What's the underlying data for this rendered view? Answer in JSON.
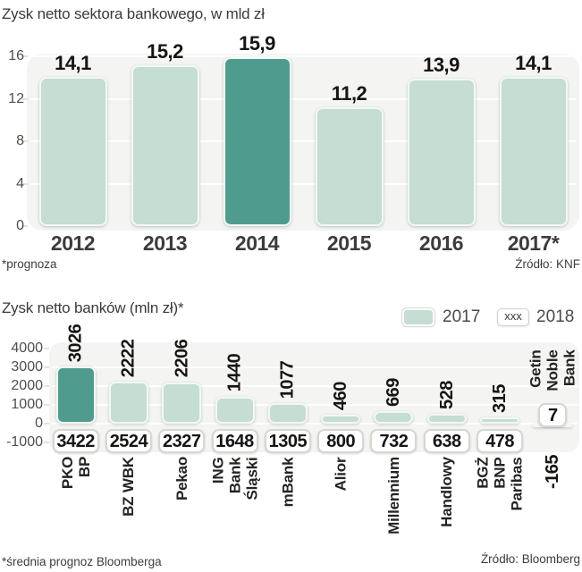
{
  "colors": {
    "teal_light": "#c5ddd3",
    "teal_dark": "#4f9c8e",
    "plot_background": "#f4f5f2"
  },
  "legend": {
    "swatch_2017": "solid-teal",
    "box_2018_text": "xxx",
    "label_2017": "2017",
    "label_2018": "2018"
  },
  "chart_data": [
    {
      "type": "bar",
      "title": "Zysk netto sektora bankowego, w mld zł",
      "categories": [
        "2012",
        "2013",
        "2014",
        "2015",
        "2016",
        "2017*"
      ],
      "values": [
        14.1,
        15.2,
        15.9,
        11.2,
        13.9,
        14.1
      ],
      "value_labels": [
        "14,1",
        "15,2",
        "15,9",
        "11,2",
        "13,9",
        "14,1"
      ],
      "highlight_index": 2,
      "ylim": [
        0,
        16
      ],
      "yticks": [
        16,
        12,
        8,
        4,
        0
      ],
      "grid": true,
      "footnote": "*prognoza",
      "source": "Źródło: KNF"
    },
    {
      "type": "bar",
      "title": "Zysk netto banków (mln zł)*",
      "categories": [
        "PKO BP",
        "BZ WBK",
        "Pekao",
        "ING Bank Śląski",
        "mBank",
        "Alior",
        "Millennium",
        "Handlowy",
        "BGŻ BNP Paribas",
        "Getin Noble Bank"
      ],
      "category_lines": [
        [
          "PKO",
          "BP"
        ],
        [
          "BZ WBK"
        ],
        [
          "Pekao"
        ],
        [
          "ING",
          "Bank",
          "Śląski"
        ],
        [
          "mBank"
        ],
        [
          "Alior"
        ],
        [
          "Millennium"
        ],
        [
          "Handlowy"
        ],
        [
          "BGŻ",
          "BNP",
          "Paribas"
        ],
        [
          "Getin",
          "Noble",
          "Bank"
        ]
      ],
      "series": [
        {
          "name": "2017",
          "values": [
            3026,
            2222,
            2206,
            1440,
            1077,
            460,
            669,
            528,
            315,
            -165
          ]
        },
        {
          "name": "2018",
          "values": [
            3422,
            2524,
            2327,
            1648,
            1305,
            800,
            732,
            638,
            478,
            7
          ]
        }
      ],
      "value_labels_2017": [
        "3026",
        "2222",
        "2206",
        "1440",
        "1077",
        "460",
        "669",
        "528",
        "315",
        "-165"
      ],
      "value_labels_2018": [
        "3422",
        "2524",
        "2327",
        "1648",
        "1305",
        "800",
        "732",
        "638",
        "478",
        "7"
      ],
      "highlight_index": 0,
      "ylim": [
        -1000,
        4000
      ],
      "yticks": [
        4000,
        3000,
        2000,
        1000,
        0,
        -1000
      ],
      "grid": true,
      "legend_position": "top-right",
      "footnote": "*średnia prognoz Bloomberga",
      "source": "Źródło: Bloomberg"
    }
  ]
}
